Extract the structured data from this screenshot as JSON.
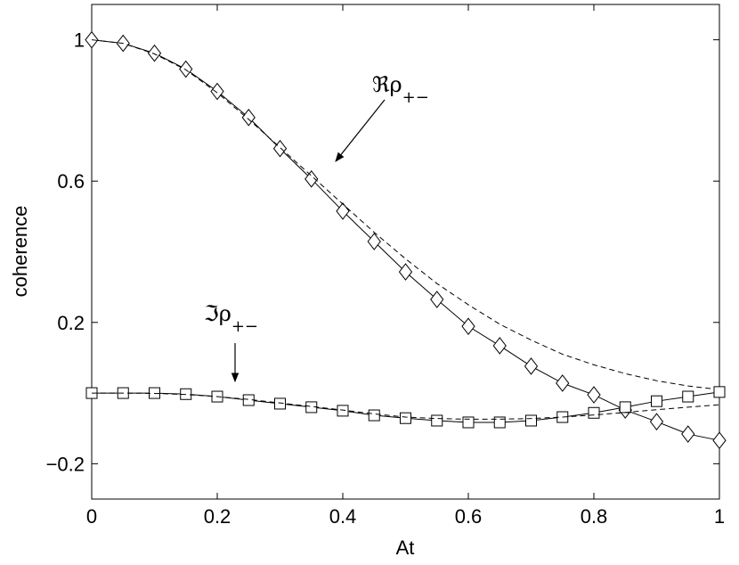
{
  "chart_data": {
    "type": "line",
    "xlabel": "At",
    "ylabel": "coherence",
    "xlim": [
      0,
      1
    ],
    "ylim": [
      -0.3,
      1.1
    ],
    "xticks": [
      0,
      0.2,
      0.4,
      0.6,
      0.8,
      1
    ],
    "yticks": [
      {
        "value": -0.2,
        "label": "−0.2"
      },
      0.2,
      0.6,
      1
    ],
    "x": [
      0,
      0.05,
      0.1,
      0.15,
      0.2,
      0.25,
      0.3,
      0.35,
      0.4,
      0.45,
      0.5,
      0.55,
      0.6,
      0.65,
      0.7,
      0.75,
      0.8,
      0.85,
      0.9,
      0.95,
      1
    ],
    "series": [
      {
        "color": "#000000",
        "line_style": "solid",
        "marker": "diamond",
        "values": [
          1.0,
          0.99,
          0.962,
          0.917,
          0.854,
          0.78,
          0.692,
          0.606,
          0.515,
          0.429,
          0.343,
          0.265,
          0.189,
          0.134,
          0.076,
          0.028,
          -0.005,
          -0.048,
          -0.081,
          -0.116,
          -0.134
        ]
      },
      {
        "color": "#000000",
        "line_style": "dashed",
        "marker": "none",
        "values": [
          1.0,
          0.99,
          0.96,
          0.915,
          0.85,
          0.775,
          0.695,
          0.615,
          0.535,
          0.455,
          0.38,
          0.31,
          0.25,
          0.195,
          0.15,
          0.11,
          0.08,
          0.055,
          0.035,
          0.02,
          0.01
        ]
      },
      {
        "color": "#000000",
        "line_style": "solid",
        "marker": "square",
        "values": [
          0,
          0,
          0,
          -0.003,
          -0.01,
          -0.02,
          -0.03,
          -0.04,
          -0.05,
          -0.063,
          -0.071,
          -0.078,
          -0.083,
          -0.083,
          -0.078,
          -0.068,
          -0.056,
          -0.04,
          -0.023,
          -0.01,
          0.003
        ]
      },
      {
        "color": "#000000",
        "line_style": "dashed",
        "marker": "none",
        "values": [
          0,
          0,
          -0.001,
          -0.004,
          -0.01,
          -0.018,
          -0.028,
          -0.038,
          -0.048,
          -0.059,
          -0.068,
          -0.072,
          -0.074,
          -0.074,
          -0.072,
          -0.068,
          -0.062,
          -0.055,
          -0.047,
          -0.04,
          -0.033
        ]
      }
    ],
    "annotations": [
      {
        "text": "ℜρ",
        "subscript": "+−"
      },
      {
        "text": "ℑρ",
        "subscript": "+−"
      }
    ]
  }
}
